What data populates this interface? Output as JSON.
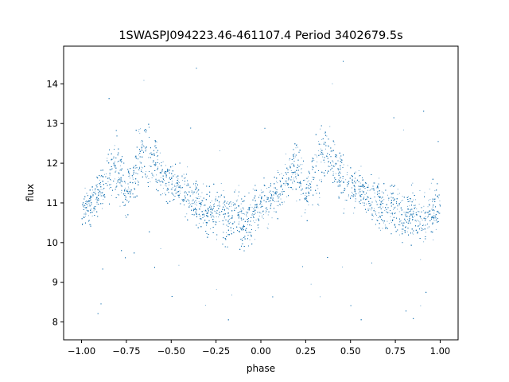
{
  "chart_data": {
    "type": "scatter",
    "title": "1SWASPJ094223.46-461107.4 Period 3402679.5s",
    "xlabel": "phase",
    "ylabel": "flux",
    "xlim": [
      -1.1,
      1.1
    ],
    "ylim": [
      7.55,
      14.95
    ],
    "grid": false,
    "marker_color": "#1f77b4",
    "x_ticks": [
      -1.0,
      -0.75,
      -0.5,
      -0.25,
      0.0,
      0.25,
      0.5,
      0.75,
      1.0
    ],
    "x_tick_labels": [
      "−1.00",
      "−0.75",
      "−0.50",
      "−0.25",
      "0.00",
      "0.25",
      "0.50",
      "0.75",
      "1.00"
    ],
    "y_ticks": [
      8,
      9,
      10,
      11,
      12,
      13,
      14
    ],
    "y_tick_labels": [
      "8",
      "9",
      "10",
      "11",
      "12",
      "13",
      "14"
    ],
    "series": [
      {
        "description_profile": "approximate mean flux vs phase (repeats with period 1 in phase)",
        "phase": [
          0.0,
          0.05,
          0.1,
          0.15,
          0.2,
          0.25,
          0.3,
          0.35,
          0.4,
          0.45,
          0.5,
          0.55,
          0.6,
          0.65,
          0.7,
          0.75,
          0.8,
          0.85,
          0.9,
          0.95,
          1.0
        ],
        "flux": [
          10.9,
          11.0,
          11.3,
          11.7,
          11.9,
          11.2,
          11.8,
          12.4,
          12.1,
          11.6,
          11.5,
          11.4,
          11.2,
          11.0,
          10.8,
          10.9,
          10.6,
          10.8,
          10.5,
          10.7,
          10.9
        ],
        "spread": [
          0.45,
          0.45,
          0.45,
          0.55,
          0.6,
          0.5,
          0.65,
          0.75,
          0.6,
          0.5,
          0.45,
          0.45,
          0.5,
          0.5,
          0.55,
          0.55,
          0.6,
          0.6,
          0.6,
          0.55,
          0.45
        ]
      }
    ]
  }
}
